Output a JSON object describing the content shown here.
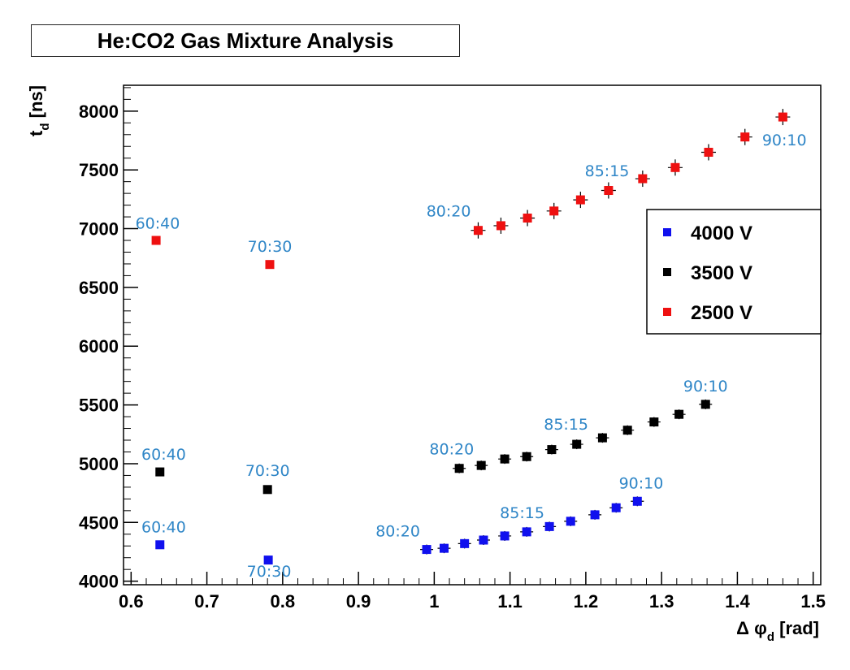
{
  "chart_data": {
    "type": "scatter",
    "title": "He:CO2 Gas Mixture Analysis",
    "xlabel": "Δ φ_d [rad]",
    "ylabel": "t_d [ns]",
    "xlim": [
      0.59,
      1.51
    ],
    "ylim": [
      3970,
      8220
    ],
    "xticks": [
      "0.6",
      "0.7",
      "0.8",
      "0.9",
      "1",
      "1.1",
      "1.2",
      "1.3",
      "1.4",
      "1.5"
    ],
    "yticks": [
      "4000",
      "4500",
      "5000",
      "5500",
      "6000",
      "6500",
      "7000",
      "7500",
      "8000"
    ],
    "legend": {
      "position": "right",
      "entries": [
        "4000 V",
        "3500 V",
        "2500 V"
      ]
    },
    "series": [
      {
        "name": "4000 V",
        "color": "#1010ee",
        "points": [
          {
            "x": 0.638,
            "y": 4310
          },
          {
            "x": 0.781,
            "y": 4180
          },
          {
            "x": 0.99,
            "y": 4270
          },
          {
            "x": 1.013,
            "y": 4280
          },
          {
            "x": 1.04,
            "y": 4320
          },
          {
            "x": 1.065,
            "y": 4350
          },
          {
            "x": 1.093,
            "y": 4385
          },
          {
            "x": 1.122,
            "y": 4420
          },
          {
            "x": 1.152,
            "y": 4465
          },
          {
            "x": 1.18,
            "y": 4510
          },
          {
            "x": 1.212,
            "y": 4565
          },
          {
            "x": 1.24,
            "y": 4625
          },
          {
            "x": 1.268,
            "y": 4680
          }
        ]
      },
      {
        "name": "3500 V",
        "color": "#000000",
        "points": [
          {
            "x": 0.638,
            "y": 4930
          },
          {
            "x": 0.78,
            "y": 4780
          },
          {
            "x": 1.033,
            "y": 4960
          },
          {
            "x": 1.062,
            "y": 4985
          },
          {
            "x": 1.093,
            "y": 5040
          },
          {
            "x": 1.122,
            "y": 5060
          },
          {
            "x": 1.155,
            "y": 5120
          },
          {
            "x": 1.188,
            "y": 5165
          },
          {
            "x": 1.222,
            "y": 5220
          },
          {
            "x": 1.255,
            "y": 5285
          },
          {
            "x": 1.29,
            "y": 5355
          },
          {
            "x": 1.323,
            "y": 5420
          },
          {
            "x": 1.358,
            "y": 5505
          }
        ]
      },
      {
        "name": "2500 V",
        "color": "#ee1010",
        "points": [
          {
            "x": 0.633,
            "y": 6900
          },
          {
            "x": 0.783,
            "y": 6695
          },
          {
            "x": 1.058,
            "y": 6985
          },
          {
            "x": 1.088,
            "y": 7025
          },
          {
            "x": 1.123,
            "y": 7090
          },
          {
            "x": 1.158,
            "y": 7150
          },
          {
            "x": 1.193,
            "y": 7245
          },
          {
            "x": 1.23,
            "y": 7325
          },
          {
            "x": 1.275,
            "y": 7425
          },
          {
            "x": 1.318,
            "y": 7520
          },
          {
            "x": 1.362,
            "y": 7650
          },
          {
            "x": 1.41,
            "y": 7780
          },
          {
            "x": 1.46,
            "y": 7950
          }
        ]
      }
    ],
    "annotations": [
      {
        "text": "60:40",
        "x": 0.635,
        "y": 7000
      },
      {
        "text": "70:30",
        "x": 0.783,
        "y": 6805
      },
      {
        "text": "80:20",
        "x": 1.019,
        "y": 7105
      },
      {
        "text": "85:15",
        "x": 1.228,
        "y": 7445
      },
      {
        "text": "90:10",
        "x": 1.462,
        "y": 7710
      },
      {
        "text": "60:40",
        "x": 0.643,
        "y": 5035
      },
      {
        "text": "70:30",
        "x": 0.78,
        "y": 4895
      },
      {
        "text": "80:20",
        "x": 1.023,
        "y": 5080
      },
      {
        "text": "85:15",
        "x": 1.174,
        "y": 5290
      },
      {
        "text": "90:10",
        "x": 1.358,
        "y": 5615
      },
      {
        "text": "60:40",
        "x": 0.643,
        "y": 4415
      },
      {
        "text": "70:30",
        "x": 0.782,
        "y": 4040
      },
      {
        "text": "80:20",
        "x": 0.952,
        "y": 4380
      },
      {
        "text": "85:15",
        "x": 1.116,
        "y": 4535
      },
      {
        "text": "90:10",
        "x": 1.273,
        "y": 4790
      }
    ]
  }
}
